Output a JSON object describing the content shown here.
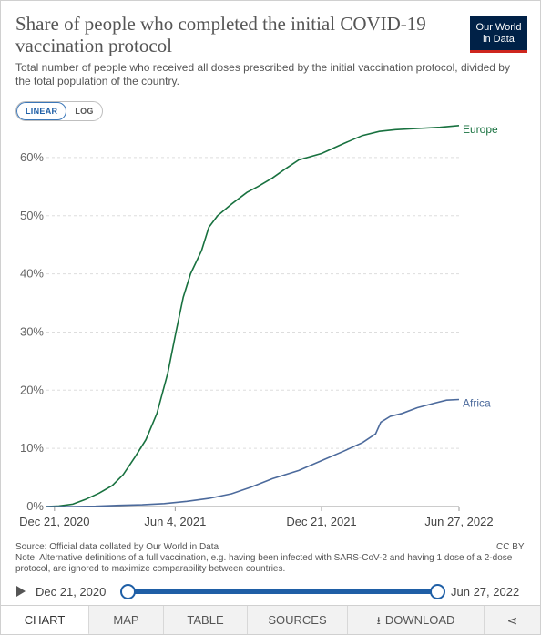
{
  "header": {
    "title": "Share of people who completed the initial COVID-19 vaccination protocol",
    "subtitle": "Total number of people who received all doses prescribed by the initial vaccination protocol, divided by the total population of the country.",
    "logo_line1": "Our World",
    "logo_line2": "in Data"
  },
  "scale_toggle": {
    "linear": "LINEAR",
    "log": "LOG",
    "selected": "LINEAR"
  },
  "chart_data": {
    "type": "line",
    "title": "Share of people who completed the initial COVID-19 vaccination protocol",
    "xlabel": "",
    "ylabel": "",
    "x_ticks": [
      "Dec 21, 2020",
      "Jun 4, 2021",
      "Dec 21, 2021",
      "Jun 27, 2022"
    ],
    "x_range": [
      "2020-12-10",
      "2022-06-27"
    ],
    "y_ticks": [
      "0%",
      "10%",
      "20%",
      "30%",
      "40%",
      "50%",
      "60%"
    ],
    "ylim": [
      0,
      65
    ],
    "grid": true,
    "legend": "labels at line ends (right)",
    "series": [
      {
        "name": "Europe",
        "color": "#18713f",
        "points": [
          [
            "2020-12-10",
            0
          ],
          [
            "2020-12-27",
            0.1
          ],
          [
            "2021-01-15",
            0.4
          ],
          [
            "2021-02-01",
            1.2
          ],
          [
            "2021-02-20",
            2.3
          ],
          [
            "2021-03-10",
            3.6
          ],
          [
            "2021-03-25",
            5.5
          ],
          [
            "2021-04-10",
            8.5
          ],
          [
            "2021-04-25",
            11.5
          ],
          [
            "2021-05-10",
            16
          ],
          [
            "2021-05-25",
            23
          ],
          [
            "2021-06-05",
            30
          ],
          [
            "2021-06-15",
            36
          ],
          [
            "2021-06-25",
            40
          ],
          [
            "2021-07-10",
            44
          ],
          [
            "2021-07-20",
            48
          ],
          [
            "2021-08-01",
            50
          ],
          [
            "2021-08-20",
            52
          ],
          [
            "2021-09-10",
            54
          ],
          [
            "2021-09-25",
            55
          ],
          [
            "2021-10-15",
            56.5
          ],
          [
            "2021-11-01",
            58
          ],
          [
            "2021-11-20",
            59.6
          ],
          [
            "2021-12-21",
            60.7
          ],
          [
            "2022-01-20",
            62.4
          ],
          [
            "2022-02-15",
            63.8
          ],
          [
            "2022-03-10",
            64.5
          ],
          [
            "2022-04-01",
            64.8
          ],
          [
            "2022-05-01",
            65
          ],
          [
            "2022-06-01",
            65.2
          ],
          [
            "2022-06-27",
            65.5
          ]
        ]
      },
      {
        "name": "Africa",
        "color": "#4c6a9c",
        "points": [
          [
            "2020-12-10",
            0
          ],
          [
            "2021-01-15",
            0
          ],
          [
            "2021-02-15",
            0.05
          ],
          [
            "2021-03-20",
            0.2
          ],
          [
            "2021-04-20",
            0.3
          ],
          [
            "2021-05-20",
            0.5
          ],
          [
            "2021-06-20",
            0.9
          ],
          [
            "2021-07-20",
            1.4
          ],
          [
            "2021-08-20",
            2.2
          ],
          [
            "2021-09-15",
            3.3
          ],
          [
            "2021-10-15",
            4.8
          ],
          [
            "2021-11-20",
            6.2
          ],
          [
            "2021-12-21",
            7.9
          ],
          [
            "2022-01-20",
            9.5
          ],
          [
            "2022-02-15",
            11
          ],
          [
            "2022-03-05",
            12.5
          ],
          [
            "2022-03-12",
            14.5
          ],
          [
            "2022-03-25",
            15.5
          ],
          [
            "2022-04-10",
            16
          ],
          [
            "2022-05-01",
            17
          ],
          [
            "2022-05-25",
            17.8
          ],
          [
            "2022-06-10",
            18.3
          ],
          [
            "2022-06-27",
            18.4
          ]
        ]
      }
    ]
  },
  "footer": {
    "source": "Source: Official data collated by Our World in Data",
    "note": "Note: Alternative definitions of a full vaccination, e.g. having been infected with SARS-CoV-2 and having 1 dose of a 2-dose protocol, are ignored to maximize comparability between countries.",
    "license": "CC BY"
  },
  "timeline": {
    "start": "Dec 21, 2020",
    "end": "Jun 27, 2022"
  },
  "tabs": [
    {
      "label": "CHART",
      "active": true
    },
    {
      "label": "MAP",
      "active": false
    },
    {
      "label": "TABLE",
      "active": false
    },
    {
      "label": "SOURCES",
      "active": false
    },
    {
      "label": "DOWNLOAD",
      "active": false
    }
  ]
}
